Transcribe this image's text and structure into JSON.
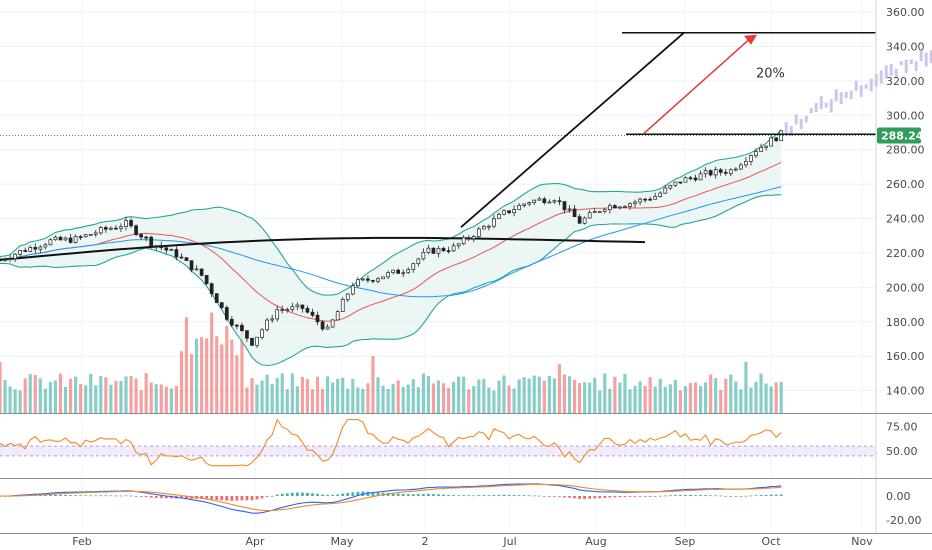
{
  "chart_data": {
    "type": "candlestick",
    "y_axis": {
      "ticks": [
        360,
        340,
        320,
        300,
        280,
        260,
        240,
        220,
        200,
        180,
        160,
        140
      ],
      "ylim": [
        127,
        367
      ]
    },
    "x_axis": {
      "labels": [
        "Feb",
        "Apr",
        "May",
        "2",
        "Jul",
        "Aug",
        "Sep",
        "Oct",
        "Nov"
      ]
    },
    "last_price": {
      "label": "288.24",
      "value": 288.24,
      "color": "#2e9e5a"
    },
    "annotation": {
      "text": "20%",
      "target_level": 348,
      "start_level": 289
    },
    "price_points": [
      [
        "2020-01-13",
        216
      ],
      [
        "2020-01-20",
        222
      ],
      [
        "2020-01-27",
        227
      ],
      [
        "2020-02-03",
        228
      ],
      [
        "2020-02-10",
        233
      ],
      [
        "2020-02-17",
        237
      ],
      [
        "2020-02-24",
        226
      ],
      [
        "2020-03-02",
        219
      ],
      [
        "2020-03-09",
        207
      ],
      [
        "2020-03-16",
        183
      ],
      [
        "2020-03-23",
        168
      ],
      [
        "2020-03-30",
        187
      ],
      [
        "2020-04-06",
        188
      ],
      [
        "2020-04-13",
        175
      ],
      [
        "2020-04-20",
        202
      ],
      [
        "2020-04-27",
        206
      ],
      [
        "2020-05-04",
        210
      ],
      [
        "2020-05-11",
        221
      ],
      [
        "2020-05-18",
        223
      ],
      [
        "2020-05-25",
        233
      ],
      [
        "2020-06-01",
        243
      ],
      [
        "2020-06-08",
        250
      ],
      [
        "2020-06-15",
        252
      ],
      [
        "2020-06-22",
        238
      ],
      [
        "2020-06-29",
        247
      ],
      [
        "2020-07-06",
        249
      ],
      [
        "2020-07-13",
        253
      ],
      [
        "2020-07-20",
        262
      ],
      [
        "2020-07-27",
        266
      ],
      [
        "2020-08-03",
        268
      ],
      [
        "2020-08-10",
        280
      ],
      [
        "2020-08-17",
        289
      ]
    ],
    "projected_points": [
      [
        "2020-08-24",
        300
      ],
      [
        "2020-08-31",
        308
      ],
      [
        "2020-09-07",
        315
      ],
      [
        "2020-09-14",
        322
      ],
      [
        "2020-09-21",
        329
      ],
      [
        "2020-09-28",
        336
      ],
      [
        "2020-10-05",
        342
      ],
      [
        "2020-10-12",
        346
      ]
    ],
    "long_ma": {
      "color": "#111111"
    },
    "rsi": {
      "ticks": [
        75,
        50
      ],
      "band": [
        45,
        55
      ],
      "color": "#f08a24"
    },
    "macd": {
      "ticks": [
        0,
        -20
      ],
      "macd_color": "#2962ff",
      "signal_color": "#f08a24"
    },
    "colors": {
      "up": "#26a69a",
      "down": "#ef5350",
      "projection": "#c9b8e8",
      "bands": "#26a69a",
      "arrow": "#e53935"
    }
  }
}
